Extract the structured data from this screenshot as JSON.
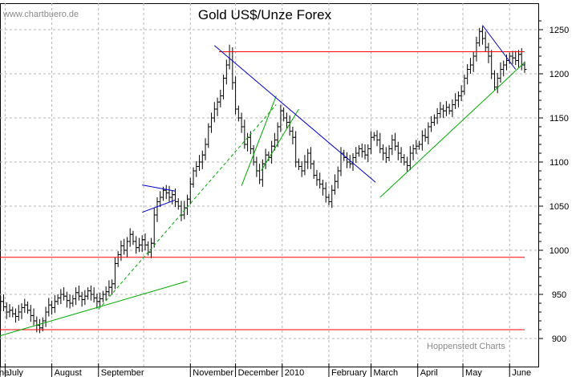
{
  "chart_data": {
    "type": "bar",
    "subtype": "ohlc",
    "title": "Gold US$/Unze Forex",
    "watermark": "www.chartbuero.de",
    "credit": "Hoppenstedt Charts",
    "xlabel": "",
    "ylabel": "",
    "ylim": [
      895,
      1270
    ],
    "yticks": [
      900,
      950,
      1000,
      1050,
      1100,
      1150,
      1200,
      1250
    ],
    "grid": true,
    "months": [
      "ne",
      "July",
      "August",
      "September",
      "November",
      "December",
      "2010",
      "February",
      "March",
      "April",
      "May",
      "June"
    ],
    "dates": [
      "2009-06-26",
      "2010-06-11"
    ],
    "closes": [
      938,
      942,
      936,
      930,
      932,
      928,
      925,
      930,
      935,
      938,
      932,
      926,
      920,
      915,
      912,
      920,
      930,
      938,
      935,
      942,
      946,
      950,
      948,
      943,
      940,
      945,
      952,
      948,
      944,
      948,
      954,
      950,
      946,
      942,
      945,
      950,
      953,
      958,
      962,
      985,
      995,
      1005,
      1000,
      1010,
      1018,
      1010,
      1003,
      1006,
      1012,
      1006,
      998,
      1008,
      1040,
      1055,
      1060,
      1068,
      1065,
      1060,
      1063,
      1055,
      1050,
      1040,
      1048,
      1058,
      1075,
      1090,
      1095,
      1100,
      1108,
      1120,
      1140,
      1150,
      1160,
      1168,
      1175,
      1195,
      1210,
      1225,
      1190,
      1160,
      1150,
      1140,
      1120,
      1128,
      1115,
      1100,
      1090,
      1080,
      1098,
      1108,
      1105,
      1118,
      1125,
      1140,
      1158,
      1150,
      1145,
      1135,
      1128,
      1100,
      1095,
      1090,
      1100,
      1110,
      1098,
      1085,
      1080,
      1075,
      1070,
      1060,
      1055,
      1068,
      1078,
      1090,
      1110,
      1105,
      1100,
      1098,
      1105,
      1110,
      1115,
      1112,
      1108,
      1115,
      1128,
      1130,
      1125,
      1115,
      1110,
      1105,
      1115,
      1125,
      1118,
      1110,
      1105,
      1100,
      1096,
      1110,
      1115,
      1118,
      1120,
      1130,
      1128,
      1140,
      1145,
      1150,
      1155,
      1160,
      1158,
      1162,
      1158,
      1165,
      1170,
      1175,
      1180,
      1195,
      1205,
      1210,
      1220,
      1235,
      1248,
      1240,
      1230,
      1220,
      1200,
      1185,
      1195,
      1205,
      1210,
      1215,
      1220,
      1218,
      1215,
      1222,
      1210,
      1205
    ],
    "lines": [
      {
        "name": "resistance",
        "color": "#ff0000",
        "from": {
          "x": "2009-06-26",
          "y": 992
        },
        "to": {
          "x": "2010-06-11",
          "y": 992
        }
      },
      {
        "name": "support",
        "color": "#ff0000",
        "from": {
          "x": "2009-06-26",
          "y": 910
        },
        "to": {
          "x": "2010-06-11",
          "y": 910
        }
      },
      {
        "name": "top",
        "color": "#ff0000",
        "from": {
          "x": "2009-11-20",
          "y": 1225
        },
        "to": {
          "x": "2010-06-11",
          "y": 1225
        }
      },
      {
        "name": "trend-1",
        "color": "#00aa00",
        "from": {
          "x": "2009-06-26",
          "y": 903
        },
        "to": {
          "x": "2009-10-30",
          "y": 965
        }
      },
      {
        "name": "trend-2",
        "color": "#00aa00",
        "dashed": true,
        "from": {
          "x": "2009-09-01",
          "y": 933
        },
        "to": {
          "x": "2009-12-28",
          "y": 1165
        }
      },
      {
        "name": "channel-1",
        "color": "#00aa00",
        "from": {
          "x": "2009-12-05",
          "y": 1073
        },
        "to": {
          "x": "2009-12-28",
          "y": 1175
        }
      },
      {
        "name": "channel-2",
        "color": "#00aa00",
        "from": {
          "x": "2009-12-18",
          "y": 1090
        },
        "to": {
          "x": "2010-01-12",
          "y": 1160
        }
      },
      {
        "name": "trend-3",
        "color": "#00aa00",
        "from": {
          "x": "2010-03-07",
          "y": 1060
        },
        "to": {
          "x": "2010-06-11",
          "y": 1213
        }
      },
      {
        "name": "down-1",
        "color": "#0000cc",
        "from": {
          "x": "2009-11-17",
          "y": 1232
        },
        "to": {
          "x": "2010-03-04",
          "y": 1077
        }
      },
      {
        "name": "down-2",
        "color": "#0000cc",
        "from": {
          "x": "2010-05-14",
          "y": 1255
        },
        "to": {
          "x": "2010-06-05",
          "y": 1205
        }
      },
      {
        "name": "pennant-upper",
        "color": "#0000cc",
        "from": {
          "x": "2009-09-30",
          "y": 1074
        },
        "to": {
          "x": "2009-10-22",
          "y": 1067
        }
      },
      {
        "name": "pennant-lower",
        "color": "#0000cc",
        "from": {
          "x": "2009-09-30",
          "y": 1043
        },
        "to": {
          "x": "2009-10-22",
          "y": 1057
        }
      }
    ]
  },
  "colors": {
    "bar": "#000000",
    "grid": "#b4b4b4",
    "support_resistance": "#ff0000",
    "trend": "#00aa00",
    "downtrend": "#0000cc"
  }
}
